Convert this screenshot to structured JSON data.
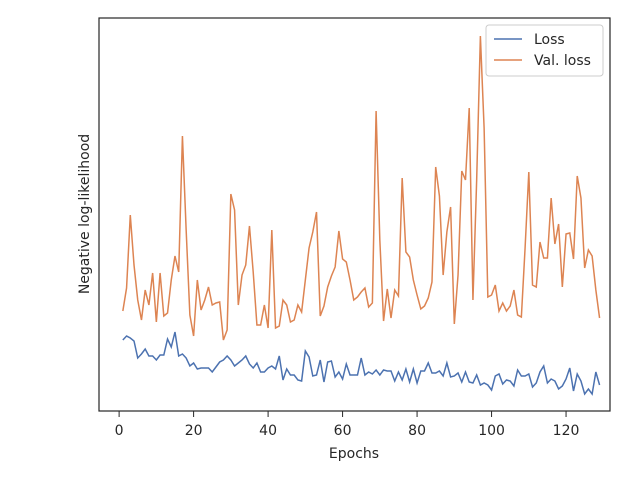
{
  "chart_data": {
    "type": "line",
    "xlabel": "Epochs",
    "ylabel": "Negative log-likelihood",
    "x": [
      1,
      2,
      3,
      4,
      5,
      6,
      7,
      8,
      9,
      10,
      11,
      12,
      13,
      14,
      15,
      16,
      17,
      18,
      19,
      20,
      21,
      22,
      23,
      24,
      25,
      26,
      27,
      28,
      29,
      30,
      31,
      32,
      33,
      34,
      35,
      36,
      37,
      38,
      39,
      40,
      41,
      42,
      43,
      44,
      45,
      46,
      47,
      48,
      49,
      50,
      51,
      52,
      53,
      54,
      55,
      56,
      57,
      58,
      59,
      60,
      61,
      62,
      63,
      64,
      65,
      66,
      67,
      68,
      69,
      70,
      71,
      72,
      73,
      74,
      75,
      76,
      77,
      78,
      79,
      80,
      81,
      82,
      83,
      84,
      85,
      86,
      87,
      88,
      89,
      90,
      91,
      92,
      93,
      94,
      95,
      96,
      97,
      98,
      99,
      100,
      101,
      102,
      103,
      104,
      105,
      106,
      107,
      108,
      109,
      110,
      111,
      112,
      113,
      114,
      115,
      116,
      117,
      118,
      119,
      120,
      121,
      122,
      123,
      124,
      125,
      126,
      127,
      128,
      129
    ],
    "series": [
      {
        "name": "Loss",
        "color": "#4c72b0",
        "values": [
          71,
          75,
          73,
          70,
          53,
          57,
          62,
          55,
          55,
          51,
          56,
          56,
          72,
          64,
          79,
          55,
          57,
          53,
          45,
          48,
          42,
          43,
          43,
          43,
          39,
          44,
          49,
          51,
          55,
          51,
          45,
          48,
          51,
          55,
          47,
          43,
          48,
          39,
          39,
          43,
          45,
          42,
          55,
          31,
          42,
          36,
          36,
          31,
          30,
          60,
          54,
          35,
          36,
          51,
          29,
          49,
          50,
          34,
          39,
          32,
          47,
          36,
          36,
          36,
          53,
          36,
          39,
          37,
          41,
          36,
          41,
          40,
          40,
          30,
          39,
          31,
          42,
          29,
          42,
          28,
          40,
          40,
          48,
          38,
          38,
          40,
          35,
          48,
          34,
          35,
          38,
          29,
          39,
          29,
          28,
          36,
          26,
          28,
          26,
          21,
          35,
          37,
          27,
          31,
          30,
          25,
          41,
          35,
          35,
          37,
          24,
          28,
          39,
          45,
          28,
          32,
          30,
          22,
          25,
          32,
          43,
          20,
          37,
          30,
          17,
          22,
          17,
          39,
          26
        ]
      },
      {
        "name": "Val. loss",
        "color": "#dd8452",
        "values": [
          100,
          123,
          196,
          146,
          111,
          91,
          121,
          106,
          138,
          89,
          138,
          95,
          98,
          131,
          155,
          139,
          275,
          181,
          96,
          75,
          131,
          101,
          111,
          124,
          106,
          108,
          109,
          71,
          81,
          217,
          201,
          106,
          136,
          146,
          185,
          139,
          86,
          86,
          106,
          83,
          181,
          83,
          85,
          111,
          106,
          89,
          91,
          106,
          99,
          131,
          163,
          179,
          199,
          95,
          105,
          124,
          135,
          144,
          180,
          152,
          149,
          131,
          111,
          114,
          119,
          123,
          104,
          108,
          300,
          171,
          90,
          122,
          93,
          121,
          115,
          233,
          159,
          154,
          131,
          116,
          102,
          105,
          113,
          129,
          244,
          215,
          136,
          179,
          204,
          87,
          136,
          240,
          231,
          303,
          111,
          231,
          375,
          283,
          114,
          116,
          126,
          100,
          108,
          100,
          105,
          121,
          96,
          94,
          163,
          239,
          126,
          124,
          169,
          153,
          153,
          213,
          167,
          187,
          124,
          177,
          178,
          152,
          235,
          213,
          143,
          161,
          155,
          121,
          93
        ]
      }
    ],
    "xlim": [
      -5.4,
      131.8
    ],
    "xticks": [
      0,
      20,
      40,
      60,
      80,
      100,
      120
    ],
    "ylim": [
      0,
      393
    ],
    "legend": "upper right"
  }
}
